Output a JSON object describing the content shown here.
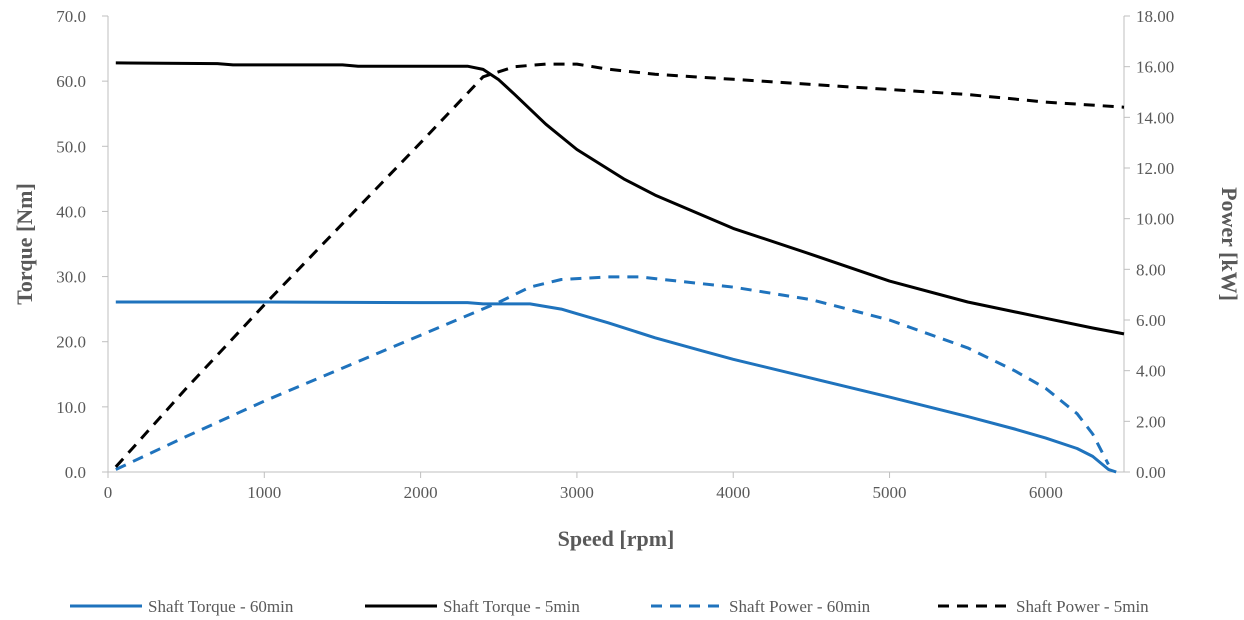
{
  "chart_data": {
    "type": "line",
    "xlabel": "Speed [rpm]",
    "ylabel_left": "Torque [Nm]",
    "ylabel_right": "Power [kW]",
    "xlim": [
      0,
      6500
    ],
    "ylim_left": [
      0,
      70
    ],
    "ylim_right": [
      0,
      18
    ],
    "x_ticks": [
      "0",
      "1000",
      "2000",
      "3000",
      "4000",
      "5000",
      "6000"
    ],
    "y_left_ticks": [
      "0.0",
      "10.0",
      "20.0",
      "30.0",
      "40.0",
      "50.0",
      "60.0",
      "70.0"
    ],
    "y_right_ticks": [
      "0.00",
      "2.00",
      "4.00",
      "6.00",
      "8.00",
      "10.00",
      "12.00",
      "14.00",
      "16.00",
      "18.00"
    ],
    "grid": false,
    "legend_position": "bottom",
    "series": [
      {
        "name": "Shaft Torque - 60min",
        "axis": "left",
        "color": "#1f73bd",
        "style": "solid",
        "points": [
          [
            50,
            26.1
          ],
          [
            1000,
            26.1
          ],
          [
            2000,
            26.0
          ],
          [
            2300,
            26.0
          ],
          [
            2400,
            25.8
          ],
          [
            2700,
            25.8
          ],
          [
            2900,
            25.0
          ],
          [
            3000,
            24.3
          ],
          [
            3200,
            22.9
          ],
          [
            3500,
            20.6
          ],
          [
            3800,
            18.6
          ],
          [
            4000,
            17.3
          ],
          [
            4500,
            14.4
          ],
          [
            5000,
            11.5
          ],
          [
            5500,
            8.5
          ],
          [
            5800,
            6.6
          ],
          [
            6000,
            5.2
          ],
          [
            6200,
            3.6
          ],
          [
            6300,
            2.4
          ],
          [
            6400,
            0.4
          ],
          [
            6450,
            0.0
          ]
        ]
      },
      {
        "name": "Shaft Torque - 5min",
        "axis": "left",
        "color": "#000000",
        "style": "solid",
        "points": [
          [
            50,
            62.8
          ],
          [
            700,
            62.7
          ],
          [
            800,
            62.5
          ],
          [
            1500,
            62.5
          ],
          [
            1600,
            62.3
          ],
          [
            2300,
            62.3
          ],
          [
            2400,
            61.8
          ],
          [
            2500,
            60.2
          ],
          [
            2600,
            58.0
          ],
          [
            2800,
            53.4
          ],
          [
            3000,
            49.5
          ],
          [
            3300,
            45.0
          ],
          [
            3500,
            42.5
          ],
          [
            4000,
            37.4
          ],
          [
            4500,
            33.4
          ],
          [
            5000,
            29.3
          ],
          [
            5500,
            26.1
          ],
          [
            6000,
            23.6
          ],
          [
            6300,
            22.1
          ],
          [
            6500,
            21.2
          ]
        ]
      },
      {
        "name": "Shaft Power - 60min",
        "axis": "right",
        "color": "#1f73bd",
        "style": "dashed",
        "points": [
          [
            50,
            0.1
          ],
          [
            500,
            1.4
          ],
          [
            1000,
            2.8
          ],
          [
            1500,
            4.1
          ],
          [
            2000,
            5.4
          ],
          [
            2500,
            6.7
          ],
          [
            2700,
            7.3
          ],
          [
            2900,
            7.6
          ],
          [
            3200,
            7.7
          ],
          [
            3400,
            7.7
          ],
          [
            3700,
            7.5
          ],
          [
            4000,
            7.3
          ],
          [
            4500,
            6.8
          ],
          [
            5000,
            6.0
          ],
          [
            5500,
            4.9
          ],
          [
            5800,
            4.0
          ],
          [
            6000,
            3.3
          ],
          [
            6200,
            2.3
          ],
          [
            6300,
            1.5
          ],
          [
            6400,
            0.3
          ]
        ]
      },
      {
        "name": "Shaft Power - 5min",
        "axis": "right",
        "color": "#000000",
        "style": "dashed",
        "points": [
          [
            50,
            0.2
          ],
          [
            500,
            3.3
          ],
          [
            1000,
            6.6
          ],
          [
            1500,
            9.8
          ],
          [
            2000,
            13.0
          ],
          [
            2400,
            15.6
          ],
          [
            2600,
            16.0
          ],
          [
            2800,
            16.1
          ],
          [
            3000,
            16.1
          ],
          [
            3200,
            15.9
          ],
          [
            3500,
            15.7
          ],
          [
            4000,
            15.5
          ],
          [
            4500,
            15.3
          ],
          [
            5000,
            15.1
          ],
          [
            5500,
            14.9
          ],
          [
            6000,
            14.6
          ],
          [
            6500,
            14.4
          ]
        ]
      }
    ]
  }
}
